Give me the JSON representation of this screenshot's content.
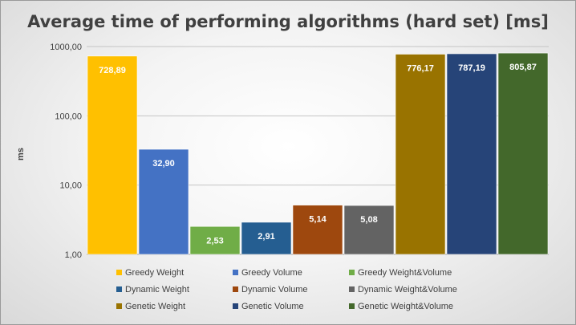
{
  "chart_data": {
    "type": "bar",
    "title": "Average time of performing algorithms (hard set) [ms]",
    "ylabel": "ms",
    "xlabel": "",
    "yscale": "log",
    "ylim": [
      1,
      1000
    ],
    "yticks": [
      1,
      10,
      100,
      1000
    ],
    "ytick_labels": [
      "1,00",
      "10,00",
      "100,00",
      "1000,00"
    ],
    "grid": "horizontal",
    "legend_position": "bottom",
    "series": [
      {
        "name": "Greedy Weight",
        "value": 728.89,
        "label": "728,89",
        "color": "#FFC000"
      },
      {
        "name": "Greedy Volume",
        "value": 32.9,
        "label": "32,90",
        "color": "#4472C4"
      },
      {
        "name": "Greedy Weight&Volume",
        "value": 2.53,
        "label": "2,53",
        "color": "#70AD47"
      },
      {
        "name": "Dynamic Weight",
        "value": 2.91,
        "label": "2,91",
        "color": "#255E91"
      },
      {
        "name": "Dynamic Volume",
        "value": 5.14,
        "label": "5,14",
        "color": "#9E480E"
      },
      {
        "name": "Dynamic Weight&Volume",
        "value": 5.08,
        "label": "5,08",
        "color": "#636363"
      },
      {
        "name": "Genetic Weight",
        "value": 776.17,
        "label": "776,17",
        "color": "#997300"
      },
      {
        "name": "Genetic Volume",
        "value": 787.19,
        "label": "787,19",
        "color": "#264478"
      },
      {
        "name": "Genetic Weight&Volume",
        "value": 805.87,
        "label": "805,87",
        "color": "#43682B"
      }
    ]
  }
}
